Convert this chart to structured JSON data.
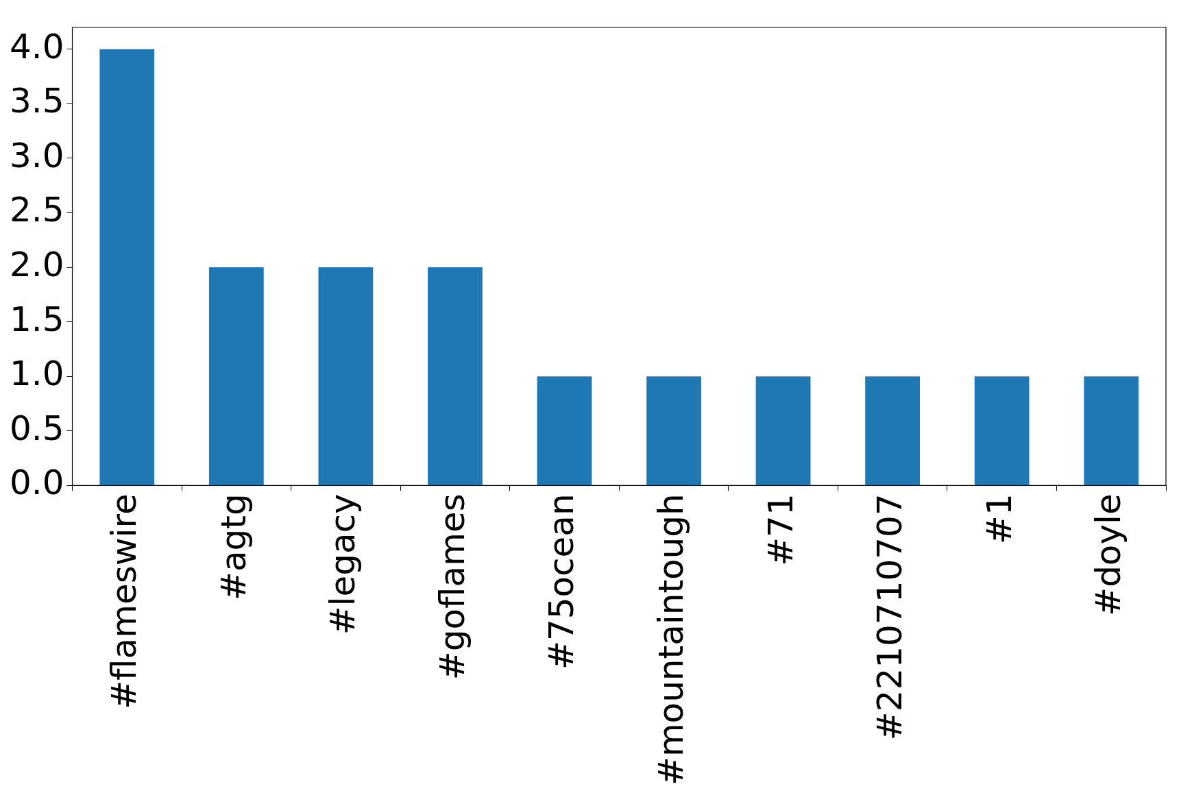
{
  "chart_data": {
    "type": "bar",
    "categories": [
      "#flameswire",
      "#agtg",
      "#legacy",
      "#goflames",
      "#75ocean",
      "#mountaintough",
      "#71",
      "#2210710707",
      "#1",
      "#doyle"
    ],
    "values": [
      4,
      2,
      2,
      2,
      1,
      1,
      1,
      1,
      1,
      1
    ],
    "color": "#1f77b4",
    "ylim": [
      0,
      4.2
    ],
    "yticks": [
      {
        "value": 0,
        "label": "0.0"
      },
      {
        "value": 0.5,
        "label": "0.5"
      },
      {
        "value": 1,
        "label": "1.0"
      },
      {
        "value": 1.5,
        "label": "1.5"
      },
      {
        "value": 2,
        "label": "2.0"
      },
      {
        "value": 2.5,
        "label": "2.5"
      },
      {
        "value": 3,
        "label": "3.0"
      },
      {
        "value": 3.5,
        "label": "3.5"
      },
      {
        "value": 4,
        "label": "4.0"
      }
    ],
    "grid": false,
    "legend": false
  }
}
